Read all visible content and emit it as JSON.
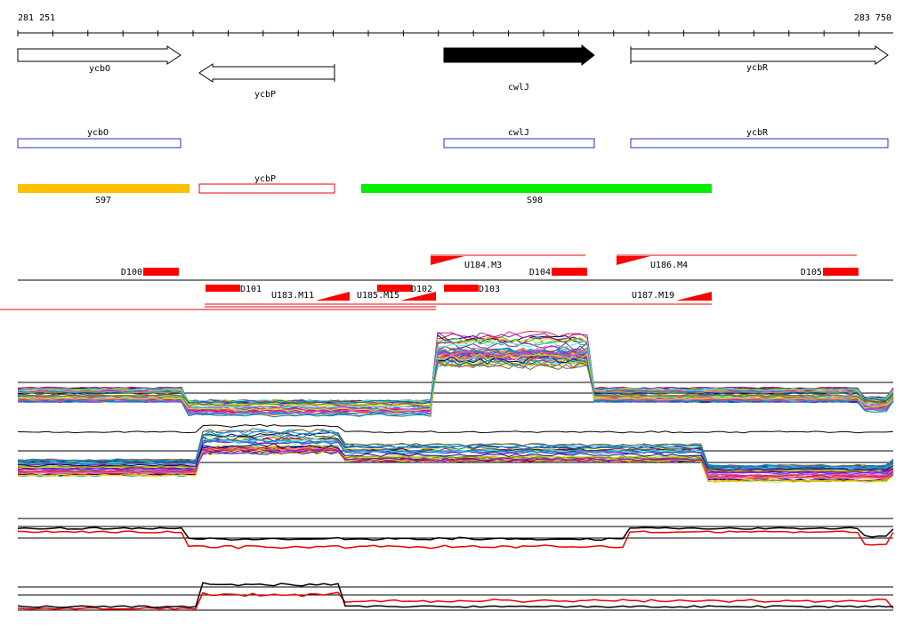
{
  "ruler": {
    "start": "281 251",
    "end": "283 750"
  },
  "genes": [
    {
      "label": "ycbO"
    },
    {
      "label": "ycbP"
    },
    {
      "label": "cwlJ"
    },
    {
      "label": "ycbR"
    }
  ],
  "coding_regions": [
    {
      "label": "ycbO"
    },
    {
      "label": "cwlJ"
    },
    {
      "label": "ycbR"
    },
    {
      "label": "ycbP"
    }
  ],
  "segments": [
    {
      "label": "S97"
    },
    {
      "label": "S98"
    }
  ],
  "features": [
    {
      "label": "D100"
    },
    {
      "label": "D101"
    },
    {
      "label": "U183.M11"
    },
    {
      "label": "U185.M15"
    },
    {
      "label": "D102"
    },
    {
      "label": "D103"
    },
    {
      "label": "U184.M3"
    },
    {
      "label": "D104"
    },
    {
      "label": "U186.M4"
    },
    {
      "label": "D105"
    },
    {
      "label": "U187.M19"
    }
  ]
}
